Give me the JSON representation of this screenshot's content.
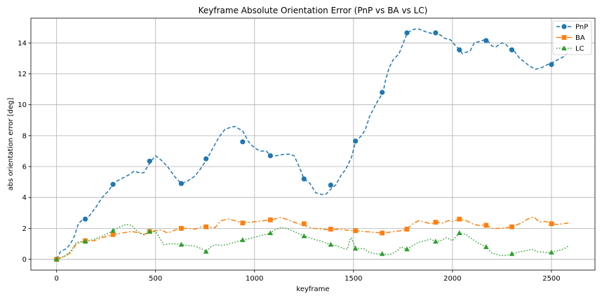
{
  "chart_data": {
    "type": "line",
    "title": "Keyframe Absolute Orientation Error (PnP vs BA vs LC)",
    "xlabel": "keyframe",
    "ylabel": "abs orientation error [deg]",
    "xlim": [
      -130,
      2720
    ],
    "ylim": [
      -0.7,
      15.6
    ],
    "xticks": [
      0,
      500,
      1000,
      1500,
      2000,
      2500
    ],
    "yticks": [
      0,
      2,
      4,
      6,
      8,
      10,
      12,
      14
    ],
    "grid": true,
    "legend_position": "top-right",
    "series": [
      {
        "name": "PnP",
        "color": "#1f77b4",
        "line_style": "dashed",
        "marker": "circle",
        "x": [
          0,
          20,
          50,
          70,
          90,
          110,
          130,
          145,
          165,
          200,
          230,
          260,
          285,
          310,
          340,
          370,
          390,
          420,
          440,
          460,
          480,
          500,
          530,
          560,
          600,
          630,
          660,
          700,
          730,
          760,
          790,
          820,
          850,
          870,
          900,
          940,
          970,
          1000,
          1030,
          1060,
          1080,
          1110,
          1150,
          1180,
          1200,
          1225,
          1250,
          1280,
          1310,
          1340,
          1360,
          1390,
          1410,
          1440,
          1460,
          1490,
          1510,
          1540,
          1560,
          1580,
          1600,
          1620,
          1650,
          1660,
          1680,
          1700,
          1730,
          1770,
          1790,
          1810,
          1830,
          1850,
          1870,
          1900,
          1920,
          1940,
          1960,
          1990,
          2010,
          2040,
          2050,
          2070,
          2090,
          2110,
          2140,
          2160,
          2180,
          2200,
          2220,
          2250,
          2270,
          2290,
          2310,
          2340,
          2360,
          2390,
          2420,
          2450,
          2480,
          2500,
          2530,
          2560,
          2585
        ],
        "y": [
          0,
          0.5,
          0.7,
          1.0,
          1.5,
          2.3,
          2.55,
          2.65,
          2.8,
          3.4,
          4.0,
          4.4,
          4.85,
          5.1,
          5.3,
          5.5,
          5.7,
          5.6,
          5.6,
          6.0,
          6.4,
          6.7,
          6.4,
          6.0,
          5.3,
          4.9,
          5.05,
          5.4,
          5.9,
          6.5,
          7.2,
          7.9,
          8.4,
          8.5,
          8.6,
          8.3,
          7.6,
          7.2,
          7.0,
          7.0,
          6.7,
          6.7,
          6.8,
          6.8,
          6.7,
          6.0,
          5.2,
          4.9,
          4.3,
          4.2,
          4.2,
          4.6,
          4.8,
          5.5,
          5.8,
          6.6,
          7.6,
          8.0,
          8.4,
          9.2,
          9.7,
          10.2,
          10.8,
          11.5,
          12.4,
          12.9,
          13.3,
          14.6,
          14.8,
          14.9,
          14.9,
          14.8,
          14.7,
          14.6,
          14.65,
          14.5,
          14.3,
          14.2,
          13.9,
          13.5,
          13.3,
          13.4,
          13.5,
          14.0,
          14.1,
          14.2,
          14.1,
          13.8,
          13.75,
          14.0,
          13.9,
          13.6,
          13.5,
          13.0,
          12.8,
          12.5,
          12.3,
          12.4,
          12.6,
          12.7,
          12.9,
          13.1,
          13.4
        ],
        "marker_x": [
          0,
          145,
          285,
          470,
          630,
          755,
          940,
          1080,
          1250,
          1385,
          1510,
          1645,
          1770,
          1915,
          2035,
          2170,
          2300,
          2500
        ],
        "marker_y": [
          0,
          2.6,
          4.85,
          6.35,
          4.9,
          6.5,
          7.6,
          6.7,
          5.2,
          4.8,
          7.65,
          10.8,
          14.65,
          14.65,
          13.55,
          14.15,
          13.55,
          12.6
        ]
      },
      {
        "name": "BA",
        "color": "#ff7f0e",
        "line_style": "dashdot",
        "marker": "square",
        "x": [
          0,
          40,
          70,
          100,
          145,
          190,
          230,
          285,
          330,
          380,
          420,
          440,
          470,
          500,
          530,
          560,
          600,
          630,
          660,
          700,
          730,
          755,
          800,
          830,
          870,
          900,
          940,
          980,
          1020,
          1050,
          1080,
          1100,
          1130,
          1160,
          1200,
          1250,
          1300,
          1340,
          1380,
          1420,
          1460,
          1490,
          1510,
          1550,
          1600,
          1645,
          1680,
          1710,
          1740,
          1770,
          1800,
          1830,
          1860,
          1890,
          1915,
          1950,
          1980,
          2000,
          2035,
          2070,
          2100,
          2130,
          2170,
          2200,
          2240,
          2270,
          2300,
          2340,
          2380,
          2410,
          2440,
          2470,
          2500,
          2530,
          2560,
          2585
        ],
        "y": [
          0,
          0.2,
          0.4,
          1.0,
          1.2,
          1.2,
          1.4,
          1.6,
          1.7,
          1.8,
          1.7,
          1.6,
          1.75,
          1.85,
          1.9,
          1.7,
          1.9,
          2.0,
          2.0,
          1.95,
          2.1,
          2.1,
          2.05,
          2.5,
          2.6,
          2.5,
          2.35,
          2.4,
          2.45,
          2.5,
          2.55,
          2.6,
          2.7,
          2.6,
          2.4,
          2.2,
          2.0,
          1.95,
          1.9,
          1.95,
          1.9,
          1.85,
          1.85,
          1.8,
          1.75,
          1.7,
          1.75,
          1.8,
          1.85,
          1.95,
          2.3,
          2.5,
          2.4,
          2.3,
          2.4,
          2.35,
          2.5,
          2.45,
          2.6,
          2.5,
          2.3,
          2.2,
          2.2,
          2.0,
          2.0,
          2.05,
          2.1,
          2.3,
          2.6,
          2.75,
          2.4,
          2.45,
          2.3,
          2.25,
          2.3,
          2.35
        ],
        "marker_x": [
          0,
          145,
          285,
          470,
          630,
          755,
          940,
          1080,
          1250,
          1385,
          1510,
          1645,
          1770,
          1915,
          2035,
          2170,
          2300,
          2500
        ],
        "marker_y": [
          0,
          1.2,
          1.6,
          1.8,
          2.0,
          2.1,
          2.35,
          2.55,
          2.3,
          1.95,
          1.85,
          1.7,
          1.95,
          2.4,
          2.6,
          2.2,
          2.1,
          2.3
        ]
      },
      {
        "name": "LC",
        "color": "#2ca02c",
        "line_style": "dotted",
        "marker": "triangle",
        "x": [
          0,
          40,
          70,
          100,
          145,
          190,
          230,
          285,
          320,
          350,
          380,
          400,
          420,
          440,
          470,
          500,
          520,
          540,
          570,
          600,
          630,
          660,
          700,
          730,
          755,
          780,
          800,
          830,
          860,
          900,
          940,
          980,
          1020,
          1050,
          1080,
          1100,
          1130,
          1160,
          1200,
          1250,
          1300,
          1340,
          1385,
          1420,
          1450,
          1470,
          1480,
          1490,
          1510,
          1550,
          1580,
          1610,
          1645,
          1680,
          1710,
          1740,
          1770,
          1800,
          1830,
          1860,
          1890,
          1915,
          1940,
          1970,
          2000,
          2035,
          2070,
          2100,
          2130,
          2170,
          2200,
          2240,
          2270,
          2300,
          2330,
          2370,
          2400,
          2430,
          2470,
          2500,
          2530,
          2560,
          2585
        ],
        "y": [
          0,
          0.2,
          0.5,
          1.1,
          1.15,
          1.3,
          1.5,
          1.85,
          2.1,
          2.25,
          2.2,
          1.9,
          1.7,
          1.6,
          1.75,
          1.8,
          1.4,
          0.95,
          1.0,
          1.0,
          0.95,
          0.9,
          0.85,
          0.7,
          0.5,
          0.8,
          0.95,
          0.9,
          0.95,
          1.1,
          1.25,
          1.35,
          1.5,
          1.6,
          1.7,
          1.9,
          2.05,
          2.0,
          1.8,
          1.5,
          1.3,
          1.15,
          0.95,
          0.85,
          0.7,
          0.65,
          1.2,
          1.4,
          0.7,
          0.7,
          0.45,
          0.35,
          0.35,
          0.3,
          0.45,
          0.8,
          0.65,
          0.9,
          1.1,
          1.2,
          1.3,
          1.15,
          1.2,
          1.4,
          1.2,
          1.7,
          1.6,
          1.3,
          1.05,
          0.8,
          0.4,
          0.25,
          0.25,
          0.35,
          0.45,
          0.55,
          0.65,
          0.5,
          0.45,
          0.45,
          0.55,
          0.65,
          0.85
        ],
        "marker_x": [
          0,
          145,
          285,
          470,
          630,
          755,
          940,
          1080,
          1250,
          1385,
          1510,
          1645,
          1770,
          1915,
          2035,
          2170,
          2300,
          2500
        ],
        "marker_y": [
          0,
          1.15,
          1.85,
          1.8,
          0.95,
          0.5,
          1.25,
          1.7,
          1.5,
          0.95,
          0.7,
          0.35,
          0.65,
          1.15,
          1.7,
          0.8,
          0.35,
          0.45
        ]
      }
    ]
  }
}
